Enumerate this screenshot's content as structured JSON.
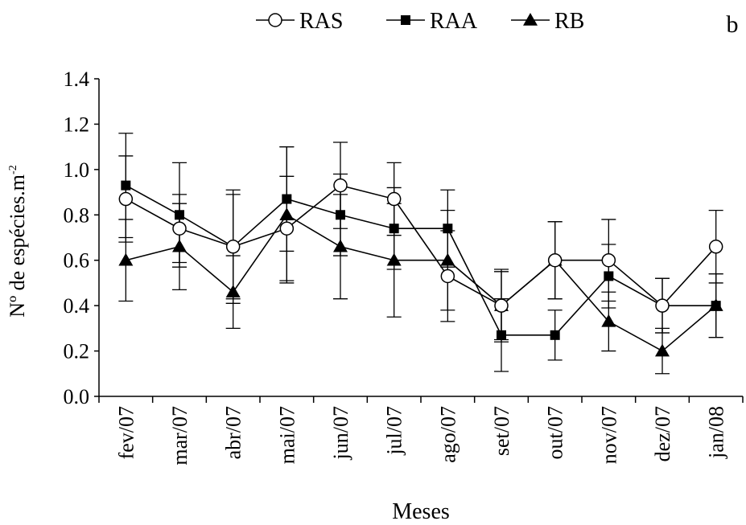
{
  "panel_label": "b",
  "chart_data": {
    "type": "line",
    "xlabel": "Meses",
    "ylabel": "Nº de espécies.m",
    "ylabel_sup": "-2",
    "ylim": [
      0.0,
      1.4
    ],
    "yticks": [
      "0.0",
      "0.2",
      "0.4",
      "0.6",
      "0.8",
      "1.0",
      "1.2",
      "1.4"
    ],
    "categories": [
      "fev/07",
      "mar/07",
      "abr/07",
      "mai/07",
      "jun/07",
      "jul/07",
      "ago/07",
      "set/07",
      "out/07",
      "nov/07",
      "dez/07",
      "jan/08"
    ],
    "legend_position": "top",
    "grid": false,
    "series": [
      {
        "name": "RAS",
        "marker": "circle-open",
        "values": [
          0.87,
          0.74,
          0.66,
          0.74,
          0.93,
          0.87,
          0.53,
          0.4,
          0.6,
          0.6,
          0.4,
          0.66
        ],
        "errors": [
          0.19,
          0.15,
          0.23,
          0.23,
          0.19,
          0.16,
          0.2,
          0.15,
          0.17,
          0.18,
          0.12,
          0.16
        ]
      },
      {
        "name": "RAA",
        "marker": "square-filled",
        "values": [
          0.93,
          0.8,
          0.66,
          0.87,
          0.8,
          0.74,
          0.74,
          0.27,
          0.27,
          0.53,
          0.4,
          0.4
        ],
        "errors": [
          0.23,
          0.23,
          0.25,
          0.23,
          0.18,
          0.18,
          0.17,
          0.16,
          0.11,
          0.14,
          0.12,
          0.14
        ]
      },
      {
        "name": "RB",
        "marker": "triangle-filled",
        "values": [
          0.6,
          0.66,
          0.46,
          0.8,
          0.66,
          0.6,
          0.6,
          0.4,
          0.6,
          0.33,
          0.2,
          0.4
        ],
        "errors": [
          0.18,
          0.19,
          0.16,
          0.3,
          0.23,
          0.25,
          0.22,
          0.16,
          0.17,
          0.13,
          0.1,
          0.14
        ]
      }
    ]
  }
}
